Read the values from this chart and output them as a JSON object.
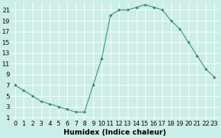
{
  "x": [
    0,
    1,
    2,
    3,
    4,
    5,
    6,
    7,
    8,
    9,
    10,
    11,
    12,
    13,
    14,
    15,
    16,
    17,
    18,
    19,
    20,
    21,
    22,
    23
  ],
  "y": [
    7,
    6,
    5,
    4,
    3.5,
    3,
    2.5,
    2,
    2,
    7,
    12,
    20,
    21,
    21,
    21.5,
    22,
    21.5,
    21,
    19,
    17.5,
    15,
    12.5,
    10,
    8.5
  ],
  "line_color": "#2e8b70",
  "marker": "D",
  "marker_size": 2.0,
  "background_color": "#cceee8",
  "grid_color": "#ffffff",
  "xlabel": "Humidex (Indice chaleur)",
  "xlabel_fontsize": 7.5,
  "ylabel_ticks": [
    1,
    3,
    5,
    7,
    9,
    11,
    13,
    15,
    17,
    19,
    21
  ],
  "xlim": [
    -0.5,
    23.5
  ],
  "ylim": [
    0.5,
    22.5
  ],
  "tick_fontsize": 6.5
}
